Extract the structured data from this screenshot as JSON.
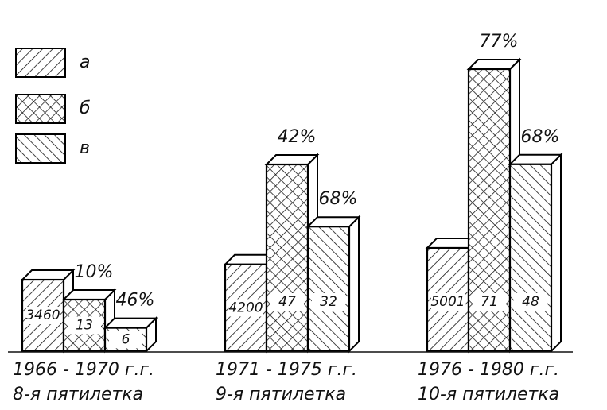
{
  "chart_data": {
    "type": "bar3d",
    "categories": [
      "1966 - 1970 г.г.",
      "1971 - 1975 г.г.",
      "1976 - 1980 г.г."
    ],
    "category_notes": [
      "8-я пятилетка",
      "9-я пятилетка",
      "10-я пятилетка"
    ],
    "series": [
      {
        "name": "а",
        "color": "#000000",
        "hatch": "forward",
        "values": [
          3460,
          4200,
          5001
        ]
      },
      {
        "name": "б",
        "color": "#000000",
        "hatch": "cross",
        "values": [
          13,
          47,
          71
        ],
        "top_labels": [
          "10%",
          "42%",
          "77%"
        ]
      },
      {
        "name": "в",
        "color": "#000000",
        "hatch": "back",
        "values": [
          6,
          32,
          48
        ],
        "top_labels": [
          "46%",
          "68%",
          "68%"
        ]
      }
    ],
    "legend": "top-left"
  }
}
